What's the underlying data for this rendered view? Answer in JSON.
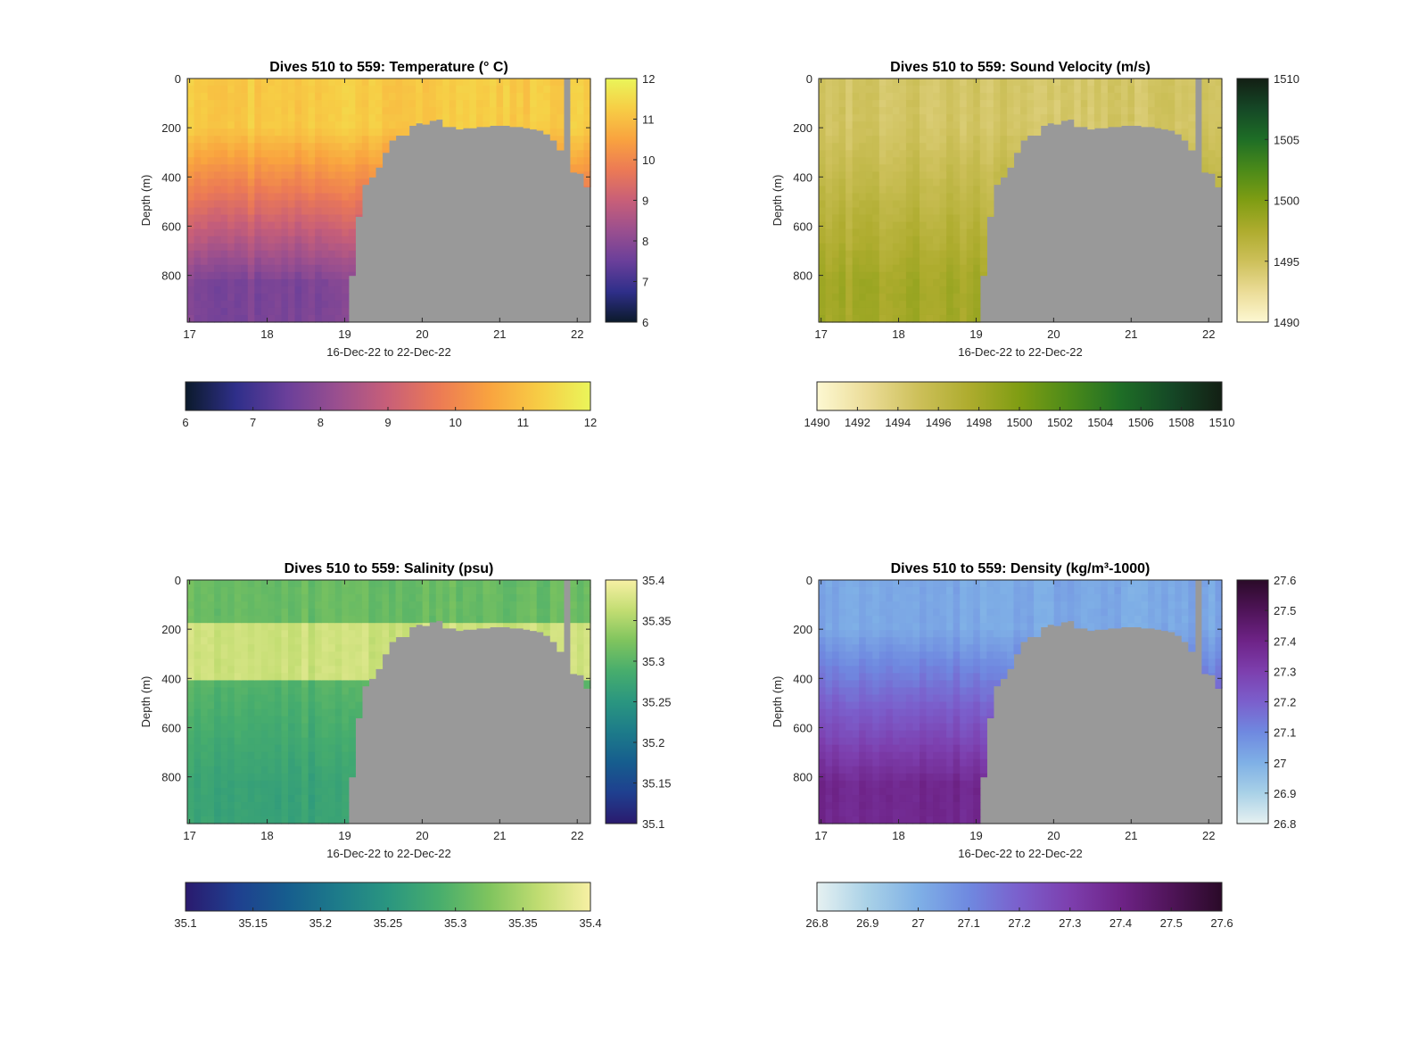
{
  "figure": {
    "background": "#ffffff",
    "mask_color": "#999999"
  },
  "chart_data": [
    {
      "type": "heatmap",
      "title": "Dives 510 to 559: Temperature (° C)",
      "xlabel": "16-Dec-22 to 22-Dec-22",
      "ylabel": "Depth (m)",
      "xlim": [
        16.97,
        22.17
      ],
      "ylim": [
        0,
        990
      ],
      "y_reversed": true,
      "x_ticks": [
        "17",
        "18",
        "19",
        "20",
        "21",
        "22"
      ],
      "x_tick_values": [
        17,
        18,
        19,
        20,
        21,
        22
      ],
      "y_ticks": [
        "0",
        "200",
        "400",
        "600",
        "800"
      ],
      "y_tick_values": [
        0,
        200,
        400,
        600,
        800
      ],
      "colormap": [
        "#0b1a2b",
        "#2f2f8a",
        "#6a3f9a",
        "#9a4f8f",
        "#c85f78",
        "#ec7a55",
        "#f9a33f",
        "#f7cd45",
        "#eaf55a"
      ],
      "clim": [
        6,
        12
      ],
      "upper_value": 11.2,
      "deep_value": 7.8,
      "thermocline_depth": 200,
      "grad_mid_depth": 400,
      "cbar_right": {
        "ticks": [
          "6",
          "7",
          "8",
          "9",
          "10",
          "11",
          "12"
        ],
        "values": [
          6,
          7,
          8,
          9,
          10,
          11,
          12
        ]
      },
      "cbar_bottom": {
        "ticks": [
          "6",
          "7",
          "8",
          "9",
          "10",
          "11",
          "12"
        ],
        "values": [
          6,
          7,
          8,
          9,
          10,
          11,
          12
        ]
      }
    },
    {
      "type": "heatmap",
      "title": "Dives 510 to 559: Sound Velocity (m/s)",
      "xlabel": "16-Dec-22 to 22-Dec-22",
      "ylabel": "Depth (m)",
      "xlim": [
        16.97,
        22.17
      ],
      "ylim": [
        0,
        990
      ],
      "y_reversed": true,
      "x_ticks": [
        "17",
        "18",
        "19",
        "20",
        "21",
        "22"
      ],
      "x_tick_values": [
        17,
        18,
        19,
        20,
        21,
        22
      ],
      "y_ticks": [
        "0",
        "200",
        "400",
        "600",
        "800"
      ],
      "y_tick_values": [
        0,
        200,
        400,
        600,
        800
      ],
      "colormap": [
        "#fdf8d2",
        "#ebdc97",
        "#cdc05a",
        "#aeac2e",
        "#7f9d13",
        "#4b8a19",
        "#1e6e26",
        "#154826",
        "#131f14"
      ],
      "clim": [
        1490,
        1510
      ],
      "upper_value": 1494.5,
      "deep_value": 1498,
      "thermocline_depth": 200,
      "grad_mid_depth": 400,
      "cbar_right": {
        "ticks": [
          "1490",
          "1495",
          "1500",
          "1505",
          "1510"
        ],
        "values": [
          1490,
          1495,
          1500,
          1505,
          1510
        ]
      },
      "cbar_bottom": {
        "ticks": [
          "1490",
          "1492",
          "1494",
          "1496",
          "1498",
          "1500",
          "1502",
          "1504",
          "1506",
          "1508",
          "1510"
        ],
        "values": [
          1490,
          1492,
          1494,
          1496,
          1498,
          1500,
          1502,
          1504,
          1506,
          1508,
          1510
        ]
      }
    },
    {
      "type": "heatmap",
      "title": "Dives 510 to 559: Salinity (psu)",
      "xlabel": "16-Dec-22 to 22-Dec-22",
      "ylabel": "Depth (m)",
      "xlim": [
        16.97,
        22.17
      ],
      "ylim": [
        0,
        990
      ],
      "y_reversed": true,
      "x_ticks": [
        "17",
        "18",
        "19",
        "20",
        "21",
        "22"
      ],
      "x_tick_values": [
        17,
        18,
        19,
        20,
        21,
        22
      ],
      "y_ticks": [
        "0",
        "200",
        "400",
        "600",
        "800"
      ],
      "y_tick_values": [
        0,
        200,
        400,
        600,
        800
      ],
      "colormap": [
        "#2a1a6e",
        "#1f3f8f",
        "#165d8e",
        "#1d7b8a",
        "#2a9680",
        "#47ad6d",
        "#7fc45e",
        "#c2dd72",
        "#f7f0a4"
      ],
      "clim": [
        35.1,
        35.4
      ],
      "upper_value": 35.31,
      "deep_value": 35.27,
      "thermocline_depth": 200,
      "grad_mid_depth": 400,
      "cbar_right": {
        "ticks": [
          "35.1",
          "35.15",
          "35.2",
          "35.25",
          "35.3",
          "35.35",
          "35.4"
        ],
        "values": [
          35.1,
          35.15,
          35.2,
          35.25,
          35.3,
          35.35,
          35.4
        ]
      },
      "cbar_bottom": {
        "ticks": [
          "35.1",
          "35.15",
          "35.2",
          "35.25",
          "35.3",
          "35.35",
          "35.4"
        ],
        "values": [
          35.1,
          35.15,
          35.2,
          35.25,
          35.3,
          35.35,
          35.4
        ]
      }
    },
    {
      "type": "heatmap",
      "title": "Dives 510 to 559: Density (kg/m³-1000)",
      "xlabel": "16-Dec-22 to 22-Dec-22",
      "ylabel": "Depth (m)",
      "xlim": [
        16.97,
        22.17
      ],
      "ylim": [
        0,
        990
      ],
      "y_reversed": true,
      "x_ticks": [
        "17",
        "18",
        "19",
        "20",
        "21",
        "22"
      ],
      "x_tick_values": [
        17,
        18,
        19,
        20,
        21,
        22
      ],
      "y_ticks": [
        "0",
        "200",
        "400",
        "600",
        "800"
      ],
      "y_tick_values": [
        0,
        200,
        400,
        600,
        800
      ],
      "colormap": [
        "#e6f1f1",
        "#a9d1e7",
        "#7fb0e6",
        "#6f89e0",
        "#7b5fcc",
        "#7d3fae",
        "#6e2387",
        "#4f1458",
        "#2a0a28"
      ],
      "clim": [
        26.8,
        27.6
      ],
      "upper_value": 27.02,
      "deep_value": 27.38,
      "thermocline_depth": 200,
      "grad_mid_depth": 400,
      "cbar_right": {
        "ticks": [
          "26.8",
          "26.9",
          "27",
          "27.1",
          "27.2",
          "27.3",
          "27.4",
          "27.5",
          "27.6"
        ],
        "values": [
          26.8,
          26.9,
          27,
          27.1,
          27.2,
          27.3,
          27.4,
          27.5,
          27.6
        ]
      },
      "cbar_bottom": {
        "ticks": [
          "26.8",
          "26.9",
          "27",
          "27.1",
          "27.2",
          "27.3",
          "27.4",
          "27.5",
          "27.6"
        ],
        "values": [
          26.8,
          26.9,
          27,
          27.1,
          27.2,
          27.3,
          27.4,
          27.5,
          27.6
        ]
      }
    }
  ],
  "dives": {
    "x_start": 16.97,
    "x_end": 22.17,
    "max_depth_profile": [
      [
        16.97,
        990
      ],
      [
        18.95,
        990
      ],
      [
        19.05,
        800
      ],
      [
        19.15,
        560
      ],
      [
        19.22,
        430
      ],
      [
        19.3,
        400
      ],
      [
        19.38,
        360
      ],
      [
        19.45,
        330
      ],
      [
        19.52,
        300
      ],
      [
        19.6,
        250
      ],
      [
        19.7,
        230
      ],
      [
        19.8,
        190
      ],
      [
        19.9,
        180
      ],
      [
        20.0,
        185
      ],
      [
        20.1,
        170
      ],
      [
        20.2,
        165
      ],
      [
        20.3,
        195
      ],
      [
        20.4,
        205
      ],
      [
        20.5,
        200
      ],
      [
        20.6,
        200
      ],
      [
        20.7,
        195
      ],
      [
        20.8,
        195
      ],
      [
        20.9,
        190
      ],
      [
        21.0,
        190
      ],
      [
        21.1,
        195
      ],
      [
        21.2,
        195
      ],
      [
        21.3,
        200
      ],
      [
        21.4,
        205
      ],
      [
        21.5,
        210
      ],
      [
        21.6,
        225
      ],
      [
        21.68,
        250
      ],
      [
        21.75,
        290
      ],
      [
        21.8,
        0
      ],
      [
        21.88,
        0
      ],
      [
        21.9,
        380
      ],
      [
        22.0,
        385
      ],
      [
        22.08,
        400
      ],
      [
        22.12,
        440
      ],
      [
        22.17,
        440
      ]
    ]
  }
}
